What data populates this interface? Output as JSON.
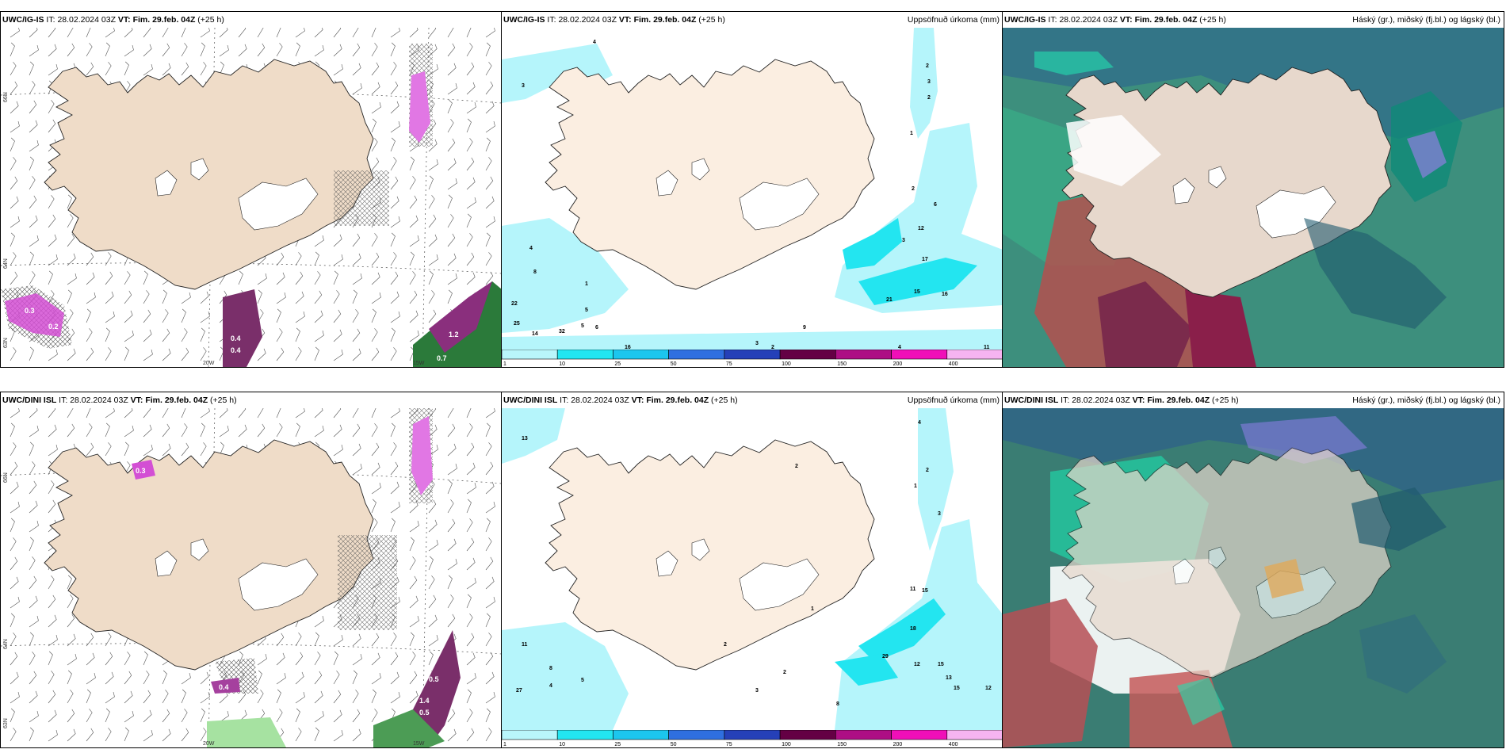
{
  "rows": [
    {
      "model": "UWC/IG-IS",
      "it_label": "IT:",
      "it_value": "28.02.2024 03Z",
      "vt_label": "VT:",
      "vt_value": "Fim. 29.feb. 04Z",
      "lead": "(+25 h)",
      "wind_values": [
        "0.4",
        "0.4",
        "0.2",
        "0.3",
        "1.2",
        "0.7"
      ],
      "precip_values": [
        "4",
        "3",
        "2",
        "3",
        "2",
        "1",
        "2",
        "6",
        "12",
        "3",
        "17",
        "21",
        "15",
        "16",
        "9",
        "3",
        "2",
        "4",
        "11",
        "4",
        "8",
        "1",
        "5",
        "5",
        "6",
        "22",
        "25",
        "14",
        "32",
        "16"
      ]
    },
    {
      "model": "UWC/DINI ISL",
      "it_label": "IT:",
      "it_value": "28.02.2024 03Z",
      "vt_label": "VT:",
      "vt_value": "Fim. 29.feb. 04Z",
      "lead": "(+25 h)",
      "wind_values": [
        "0.3",
        "0.4",
        "0.5",
        "1.4",
        "0.5"
      ],
      "precip_values": [
        "13",
        "4",
        "2",
        "1",
        "2",
        "3",
        "11",
        "15",
        "1",
        "18",
        "29",
        "12",
        "15",
        "13",
        "15",
        "12",
        "8",
        "2",
        "2",
        "3",
        "11",
        "8",
        "5",
        "4",
        "27"
      ]
    }
  ],
  "precip_title": "Uppsöfnuð úrkoma (mm)",
  "cloud_title": "Háský (gr.), miðský (fj.bl.) og lágský (bl.)",
  "axis_labels": {
    "lat66": "66N",
    "lat64": "64N",
    "lat63": "63N",
    "lon20": "20W",
    "lon15": "15W"
  },
  "legend": {
    "ticks": [
      "1",
      "10",
      "25",
      "50",
      "75",
      "100",
      "150",
      "200",
      "400"
    ],
    "colors": [
      "#b9f6fb",
      "#22e6f1",
      "#1cc6ee",
      "#2f6fe0",
      "#2540b8",
      "#640044",
      "#ad0e84",
      "#f00fb8",
      "#f6b4f1"
    ]
  },
  "colors": {
    "land": "#f6e9da",
    "land_wind": "#efdcc8",
    "sea_precip": "#b5f5fb",
    "precip_heavy": "#23e5f0",
    "cloud_base": "#3c8d7a"
  }
}
